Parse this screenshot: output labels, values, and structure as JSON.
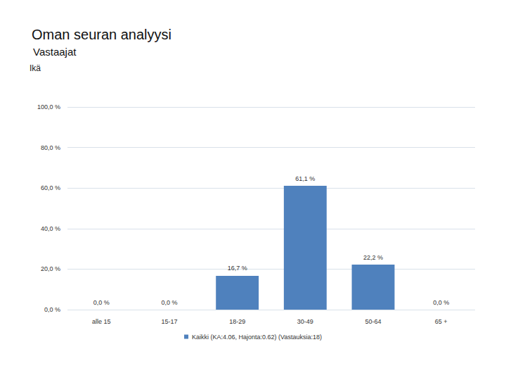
{
  "chart_data": {
    "type": "bar",
    "title": "Oman seuran analyysi",
    "subtitle": "Vastaajat",
    "annotations": [
      "Ikä"
    ],
    "categories": [
      "alle 15",
      "15-17",
      "18-29",
      "30-49",
      "50-64",
      "65 +"
    ],
    "series": [
      {
        "name": "Kaikki (KA:4.06, Hajonta:0.62) (Vastauksia:18)",
        "color": "#4f81bd",
        "values": [
          0,
          0,
          16.7,
          61.1,
          22.2,
          0
        ],
        "value_labels": [
          "0,0 %",
          "0,0 %",
          "16,7 %",
          "61,1 %",
          "22,2 %",
          "0,0 %"
        ]
      }
    ],
    "ylim": [
      0,
      100
    ],
    "yticks": [
      {
        "value": 0,
        "label": "0,0 %"
      },
      {
        "value": 20,
        "label": "20,0 %"
      },
      {
        "value": 40,
        "label": "40,0 %"
      },
      {
        "value": 60,
        "label": "60,0 %"
      },
      {
        "value": 80,
        "label": "80,0 %"
      },
      {
        "value": 100,
        "label": "100,0 %"
      }
    ],
    "grid": true,
    "legend": "bottom",
    "data_labels": true
  }
}
